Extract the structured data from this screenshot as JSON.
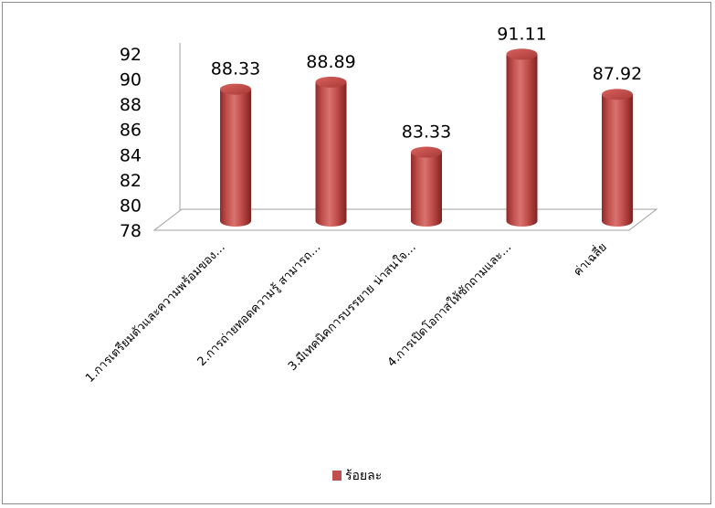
{
  "chart_data": {
    "type": "bar",
    "style": "3d-cylinder",
    "categories": [
      "1.การเตรียมตัวและความพร้อมของ…",
      "2.การถ่ายทอดความรู้ สามารถ…",
      "3.มีเทคนิคการบรรยาย น่าสนใจ…",
      "4.การเปิดโอกาสให้ซักถามและ…",
      "ค่าเฉลี่ย"
    ],
    "series": [
      {
        "name": "ร้อยละ",
        "values": [
          88.33,
          88.89,
          83.33,
          91.11,
          87.92
        ],
        "color": "#c0504d"
      }
    ],
    "data_labels": [
      "88.33",
      "88.89",
      "83.33",
      "91.11",
      "87.92"
    ],
    "ylim": [
      78,
      92
    ],
    "yticks": [
      "78",
      "80",
      "82",
      "84",
      "86",
      "88",
      "90",
      "92"
    ],
    "legend": {
      "position": "bottom",
      "label": "ร้อยละ"
    },
    "grid": false
  }
}
